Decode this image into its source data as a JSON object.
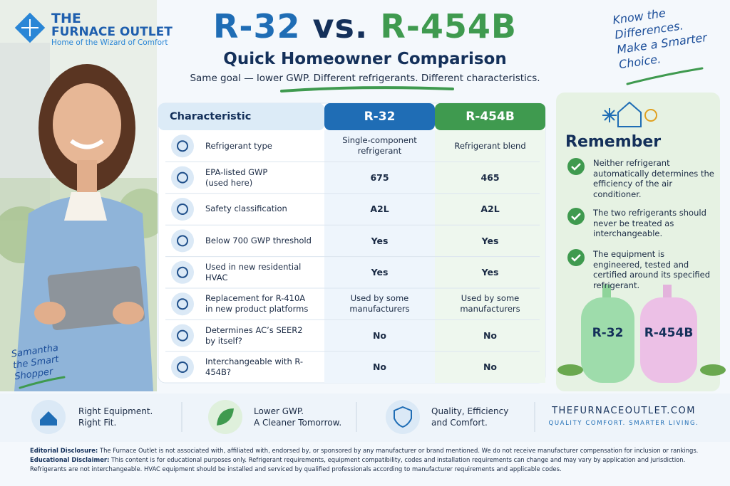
{
  "header": {
    "logo_line1": "THE",
    "logo_line2": "FURNACE OUTLET",
    "logo_tagline": "Home of the Wizard of Comfort",
    "title_part1": "R-32",
    "title_part2": "vs.",
    "title_part3": "R-454B",
    "subtitle": "Quick Homeowner Comparison",
    "tagline": "Same goal — lower GWP. Different refrigerants. Different characteristics.",
    "callout": [
      "Know the",
      "Differences.",
      "Make a Smarter",
      "Choice."
    ]
  },
  "person_caption": [
    "Samantha",
    "the Smart",
    "Shopper"
  ],
  "table": {
    "columns": [
      "Characteristic",
      "R-32",
      "R-454B"
    ],
    "rows": [
      [
        "Refrigerant type",
        [
          "Single-component",
          "refrigerant"
        ],
        "Refrigerant blend"
      ],
      [
        [
          "EPA-listed GWP",
          "(used here)"
        ],
        675,
        465
      ],
      [
        "Safety classification",
        "A2L",
        "A2L"
      ],
      [
        "Below 700 GWP threshold",
        "Yes",
        "Yes"
      ],
      [
        "Used in new residential HVAC",
        "Yes",
        "Yes"
      ],
      [
        [
          "Replacement for R-410A",
          "in new product platforms"
        ],
        [
          "Used by some",
          "manufacturers"
        ],
        [
          "Used by some",
          "manufacturers"
        ]
      ],
      [
        [
          "Determines AC’s SEER2",
          "by itself?"
        ],
        "No",
        "No"
      ],
      [
        "Interchangeable with R-454B?",
        "No",
        "No"
      ]
    ]
  },
  "remember": {
    "title": "Remember",
    "items": [
      "Neither refrigerant automatically determines the efficiency of the air conditioner.",
      "The two refrigerants should never be treated as interchangeable.",
      "The equipment is engineered, tested and certified around its specified refrigerant."
    ],
    "tank_labels": [
      "R-32",
      "R-454B"
    ]
  },
  "features": [
    [
      "Right Equipment.",
      "Right Fit."
    ],
    [
      "Lower GWP.",
      "A Cleaner Tomorrow."
    ],
    [
      "Quality, Efficiency",
      "and Comfort."
    ]
  ],
  "website": "THEFURNACEOUTLET.COM",
  "slogan": "QUALITY COMFORT. SMARTER LIVING.",
  "disclaimers": [
    {
      "label": "Editorial Disclosure:",
      "text": "The Furnace Outlet is not associated with, affiliated with, endorsed by, or sponsored by any manufacturer or brand mentioned. We do not receive manufacturer compensation for inclusion or rankings."
    },
    {
      "label": "Educational Disclaimer:",
      "text": "This content is for educational purposes only. Refrigerant requirements, equipment compatibility, codes and installation requirements can change and may vary by application and jurisdiction."
    }
  ],
  "disclaimer_note": "Refrigerants are not interchangeable. HVAC equipment should be installed and serviced by qualified professionals according to manufacturer requirements and applicable codes."
}
